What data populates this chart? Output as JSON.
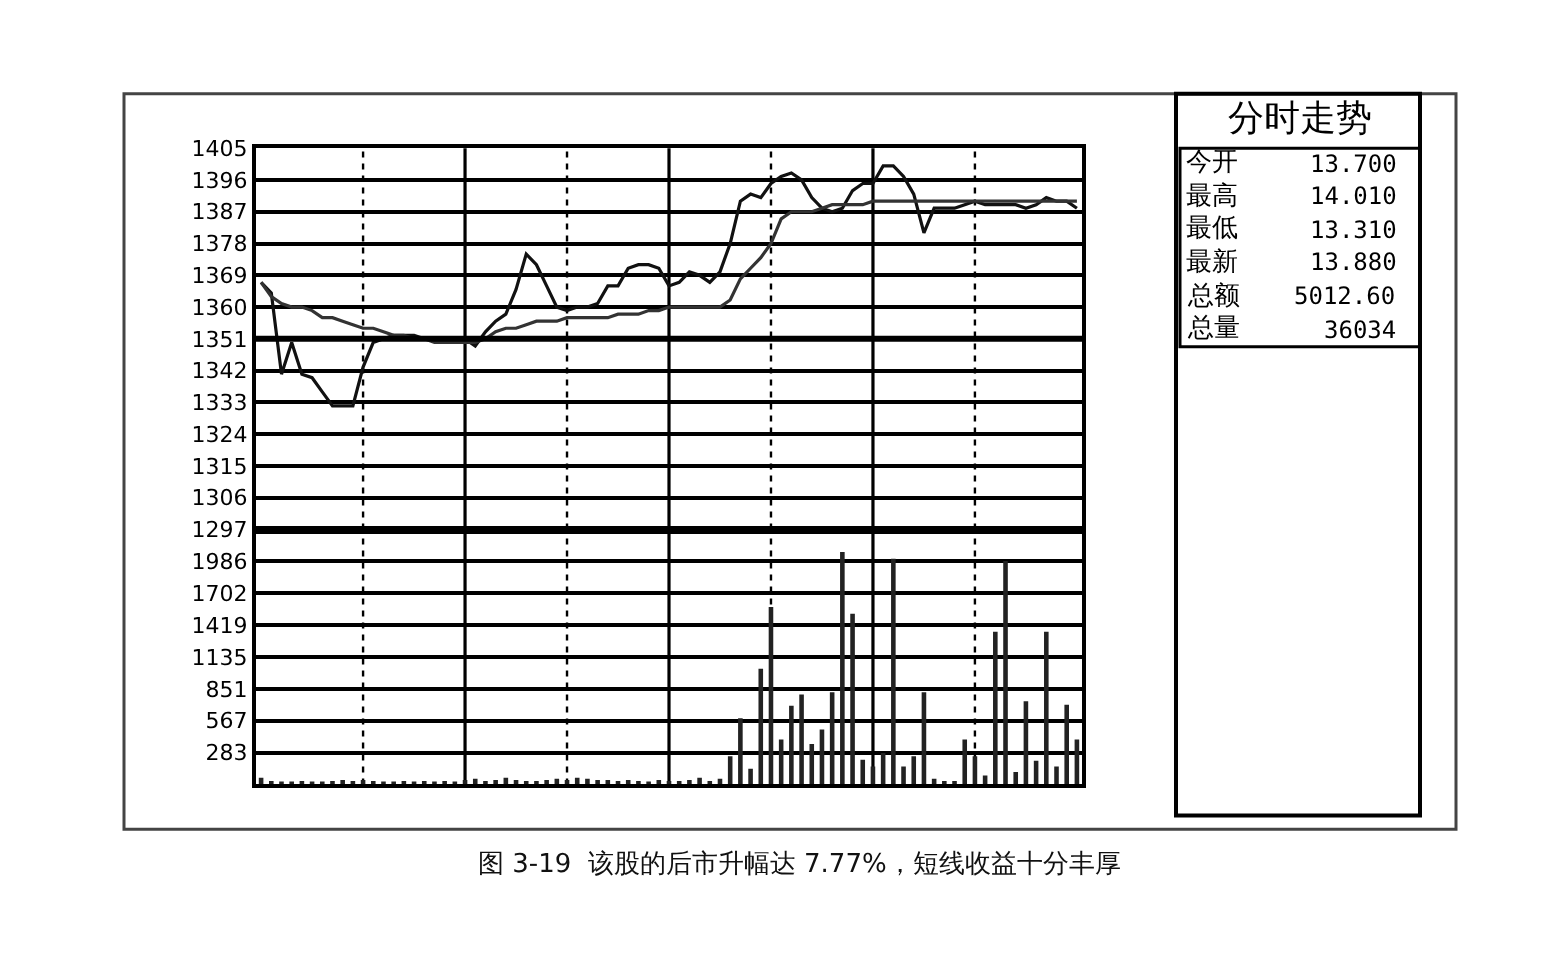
{
  "chart_data": [
    {
      "type": "line",
      "title": "图 3-19  该股的后市升幅达 7.77%，短线收益十分丰厚",
      "categories": [
        null,
        null,
        null,
        null,
        null,
        null,
        null,
        null,
        null,
        null,
        null,
        null,
        null,
        null,
        null,
        null,
        null,
        null,
        null,
        null,
        null,
        null,
        null,
        null,
        null,
        null,
        null,
        null,
        null,
        null,
        null,
        null,
        null,
        null,
        null,
        null,
        null,
        null,
        null,
        null,
        null,
        null,
        null,
        null,
        null,
        null,
        null,
        null,
        null,
        null,
        null,
        null,
        null,
        null,
        null,
        null,
        null,
        null,
        null,
        null,
        null,
        null,
        null,
        null,
        null,
        null,
        null,
        null,
        null,
        null,
        null,
        null,
        null,
        null,
        null,
        null,
        null,
        null,
        null,
        null,
        null
      ],
      "series": [
        {
          "color": "#111111",
          "values": [
            1367,
            1364,
            1341,
            1350,
            1341,
            1340,
            1336,
            1332,
            1332,
            1332,
            1343,
            1350,
            1351,
            1352,
            1352,
            1352,
            1351,
            1351,
            1350,
            1350,
            1351,
            1349,
            1353,
            1356,
            1358,
            1365,
            1375,
            1372,
            1366,
            1360,
            1359,
            1360,
            1360,
            1361,
            1366,
            1366,
            1371,
            1372,
            1372,
            1371,
            1366,
            1367,
            1370,
            1369,
            1367,
            1370,
            1378,
            1390,
            1392,
            1391,
            1395,
            1397,
            1398,
            1396,
            1391,
            1388,
            1387,
            1388,
            1393,
            1395,
            1395,
            1400,
            1400,
            1397,
            1392,
            1381,
            1388,
            1388,
            1388,
            1389,
            1390,
            1389,
            1389,
            1389,
            1389,
            1388,
            1389,
            1391,
            1390,
            1390,
            1388
          ]
        },
        {
          "color": "#333333",
          "values": [
            1367,
            1363,
            1361,
            1360,
            1360,
            1359,
            1357,
            1357,
            1356,
            1355,
            1354,
            1354,
            1353,
            1352,
            1352,
            1351,
            1351,
            1350,
            1350,
            1350,
            1350,
            1350,
            1351,
            1353,
            1354,
            1354,
            1355,
            1356,
            1356,
            1356,
            1357,
            1357,
            1357,
            1357,
            1357,
            1358,
            1358,
            1358,
            1359,
            1359,
            1360,
            1360,
            1360,
            1360,
            1360,
            1360,
            1362,
            1368,
            1371,
            1374,
            1378,
            1385,
            1387,
            1387,
            1387,
            1388,
            1389,
            1389,
            1389,
            1389,
            1390,
            1390,
            1390,
            1390,
            1390,
            1390,
            1390,
            1390,
            1390,
            1390,
            1390,
            1390,
            1390,
            1390,
            1390,
            1390,
            1390,
            1390,
            1390,
            1390,
            1390
          ]
        }
      ],
      "ylim": [
        1297,
        1405
      ],
      "yticks": [
        1405,
        1396,
        1387,
        1378,
        1369,
        1360,
        1351,
        1342,
        1333,
        1324,
        1315,
        1306,
        1297
      ],
      "ref_lines": [
        {
          "axis": "y",
          "value": 1351,
          "color": "#000000"
        }
      ],
      "grid": true,
      "marker": "none",
      "line_style": "solid",
      "tick_labels": "y"
    },
    {
      "type": "bar",
      "categories": [
        null,
        null,
        null,
        null,
        null,
        null,
        null,
        null,
        null,
        null,
        null,
        null,
        null,
        null,
        null,
        null,
        null,
        null,
        null,
        null,
        null,
        null,
        null,
        null,
        null,
        null,
        null,
        null,
        null,
        null,
        null,
        null,
        null,
        null,
        null,
        null,
        null,
        null,
        null,
        null,
        null,
        null,
        null,
        null,
        null,
        null,
        null,
        null,
        null,
        null,
        null,
        null,
        null,
        null,
        null,
        null,
        null,
        null,
        null,
        null,
        null,
        null,
        null,
        null,
        null,
        null,
        null,
        null,
        null,
        null,
        null,
        null,
        null,
        null,
        null,
        null,
        null,
        null,
        null,
        null,
        null
      ],
      "values": [
        60,
        30,
        20,
        20,
        30,
        20,
        20,
        30,
        40,
        30,
        40,
        30,
        20,
        20,
        30,
        20,
        30,
        20,
        30,
        20,
        40,
        50,
        30,
        40,
        60,
        40,
        30,
        30,
        40,
        50,
        40,
        60,
        50,
        40,
        40,
        30,
        40,
        30,
        20,
        40,
        30,
        30,
        40,
        60,
        30,
        50,
        250,
        590,
        140,
        1030,
        1580,
        400,
        700,
        800,
        360,
        490,
        820,
        2070,
        1520,
        220,
        160,
        280,
        2010,
        160,
        250,
        820,
        50,
        30,
        30,
        400,
        250,
        80,
        1360,
        1990,
        110,
        740,
        210,
        1360,
        160,
        710,
        400
      ],
      "color": "#222222",
      "ylim": [
        0,
        2270
      ],
      "yticks": [
        283,
        567,
        851,
        1135,
        1419,
        1702,
        1986
      ],
      "grid": true,
      "tick_labels": "y"
    },
    {
      "type": "other",
      "title": "分时走势",
      "annotations": [
        "今开",
        "13.700",
        "最高",
        "14.010",
        "最低",
        "13.310",
        "最新",
        "13.880",
        "总额",
        "5012.60",
        "总量",
        "36034"
      ]
    }
  ]
}
